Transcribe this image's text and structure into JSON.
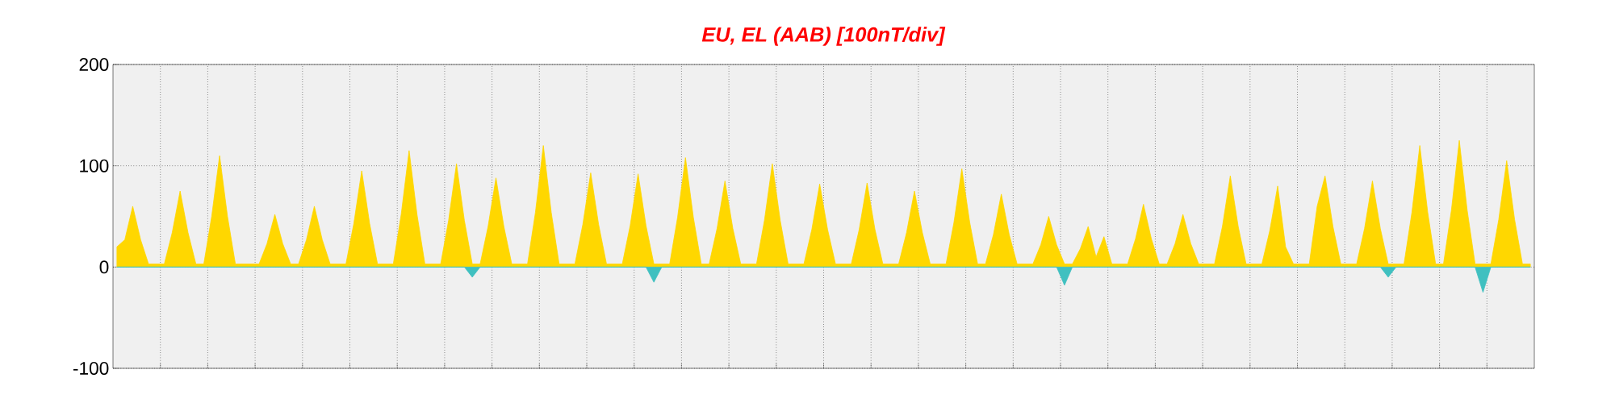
{
  "chart_data": {
    "type": "area",
    "title": "EU, EL (AAB)  [100nT/div]",
    "categories": [
      null,
      null,
      null,
      null,
      null,
      null,
      null,
      null,
      null,
      null,
      null,
      null,
      null,
      null,
      null,
      null,
      null,
      null,
      null,
      null,
      null,
      null,
      null,
      null,
      null,
      null,
      null,
      null,
      null,
      null,
      null,
      null,
      null,
      null,
      null,
      null,
      null,
      null,
      null,
      null,
      null,
      null,
      null,
      null,
      null,
      null,
      null,
      null,
      null,
      null,
      null,
      null,
      null,
      null,
      null,
      null,
      null,
      null,
      null,
      null,
      null,
      null,
      null,
      null,
      null,
      null,
      null,
      null,
      null,
      null,
      null,
      null,
      null,
      null,
      null,
      null,
      null,
      null,
      null,
      null,
      null,
      null,
      null,
      null,
      null,
      null,
      null,
      null,
      null,
      null,
      null,
      null,
      null,
      null,
      null,
      null,
      null,
      null,
      null,
      null,
      null,
      null,
      null,
      null,
      null,
      null,
      null,
      null,
      null,
      null,
      null,
      null,
      null,
      null,
      null,
      null,
      null,
      null,
      null,
      null,
      null,
      null,
      null,
      null,
      null,
      null,
      null,
      null,
      null,
      null,
      null,
      null,
      null,
      null,
      null,
      null,
      null,
      null,
      null,
      null,
      null,
      null,
      null,
      null,
      null,
      null,
      null,
      null,
      null,
      null,
      null,
      null,
      null,
      null,
      null,
      null,
      null,
      null,
      null,
      null,
      null,
      null,
      null,
      null,
      null,
      null,
      null,
      null,
      null,
      null,
      null,
      null,
      null,
      null,
      null,
      null,
      null,
      null,
      null,
      null
    ],
    "ylim": [
      -100,
      200
    ],
    "yticks": [
      -100,
      0,
      100,
      200
    ],
    "grid": true,
    "series": [
      {
        "color": "#ffd700",
        "values": [
          20,
          27,
          60,
          27,
          3,
          3,
          3,
          34,
          75,
          34,
          3,
          3,
          50,
          110,
          50,
          3,
          3,
          3,
          3,
          23,
          52,
          23,
          3,
          3,
          27,
          60,
          27,
          3,
          3,
          3,
          43,
          95,
          43,
          3,
          3,
          3,
          52,
          115,
          52,
          3,
          3,
          3,
          46,
          102,
          46,
          3,
          3,
          40,
          88,
          40,
          3,
          3,
          3,
          54,
          120,
          54,
          3,
          3,
          3,
          42,
          93,
          42,
          3,
          3,
          3,
          41,
          92,
          41,
          3,
          3,
          3,
          49,
          108,
          49,
          3,
          3,
          38,
          85,
          38,
          3,
          3,
          3,
          46,
          102,
          46,
          3,
          3,
          3,
          37,
          82,
          37,
          3,
          3,
          3,
          37,
          83,
          37,
          3,
          3,
          3,
          34,
          75,
          34,
          3,
          3,
          3,
          44,
          97,
          44,
          3,
          3,
          32,
          72,
          32,
          3,
          3,
          3,
          22,
          50,
          22,
          3,
          3,
          18,
          40,
          10,
          30,
          3,
          3,
          3,
          28,
          62,
          28,
          3,
          3,
          23,
          52,
          23,
          3,
          3,
          3,
          40,
          90,
          40,
          3,
          3,
          3,
          36,
          80,
          20,
          3,
          3,
          3,
          60,
          90,
          40,
          3,
          3,
          3,
          38,
          85,
          38,
          3,
          3,
          3,
          54,
          120,
          54,
          3,
          3,
          56,
          125,
          56,
          3,
          3,
          3,
          47,
          105,
          47,
          3,
          3
        ]
      },
      {
        "color": "#40c0c0",
        "values": [
          0,
          0,
          0,
          0,
          0,
          0,
          0,
          0,
          0,
          0,
          0,
          0,
          0,
          0,
          0,
          0,
          0,
          0,
          0,
          0,
          0,
          0,
          0,
          0,
          0,
          0,
          0,
          0,
          0,
          0,
          0,
          0,
          0,
          0,
          0,
          0,
          0,
          0,
          0,
          0,
          0,
          0,
          0,
          0,
          0,
          -10,
          0,
          0,
          0,
          0,
          0,
          0,
          0,
          0,
          0,
          0,
          0,
          0,
          0,
          0,
          0,
          0,
          0,
          0,
          0,
          0,
          0,
          0,
          -15,
          0,
          0,
          0,
          0,
          0,
          0,
          0,
          0,
          0,
          0,
          0,
          0,
          0,
          0,
          0,
          0,
          0,
          0,
          0,
          0,
          0,
          0,
          0,
          0,
          0,
          0,
          0,
          0,
          0,
          0,
          0,
          0,
          0,
          0,
          0,
          0,
          0,
          0,
          0,
          0,
          0,
          0,
          0,
          0,
          0,
          0,
          0,
          0,
          0,
          0,
          0,
          -18,
          0,
          0,
          0,
          0,
          0,
          0,
          0,
          0,
          0,
          0,
          0,
          0,
          0,
          0,
          0,
          0,
          0,
          0,
          0,
          0,
          0,
          0,
          0,
          0,
          0,
          0,
          0,
          0,
          0,
          0,
          0,
          0,
          0,
          0,
          0,
          0,
          0,
          0,
          0,
          0,
          -10,
          0,
          0,
          0,
          0,
          0,
          0,
          0,
          0,
          0,
          0,
          0,
          -25,
          0,
          0,
          0,
          0,
          0,
          0
        ]
      }
    ]
  }
}
